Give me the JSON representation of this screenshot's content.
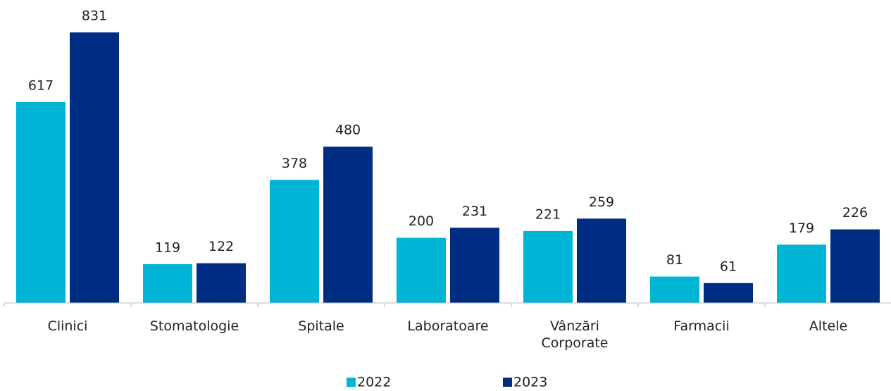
{
  "chart_data": {
    "type": "bar",
    "categories": [
      "Clinici",
      "Stomatologie",
      "Spitale",
      "Laboratoare",
      "Vânzări Corporate",
      "Farmacii",
      "Altele"
    ],
    "series": [
      {
        "name": "2022",
        "color": "#00b4d6",
        "values": [
          617,
          119,
          378,
          200,
          221,
          81,
          179
        ]
      },
      {
        "name": "2023",
        "color": "#002d84",
        "values": [
          831,
          122,
          480,
          231,
          259,
          61,
          226
        ]
      }
    ],
    "legend": "bottom"
  }
}
